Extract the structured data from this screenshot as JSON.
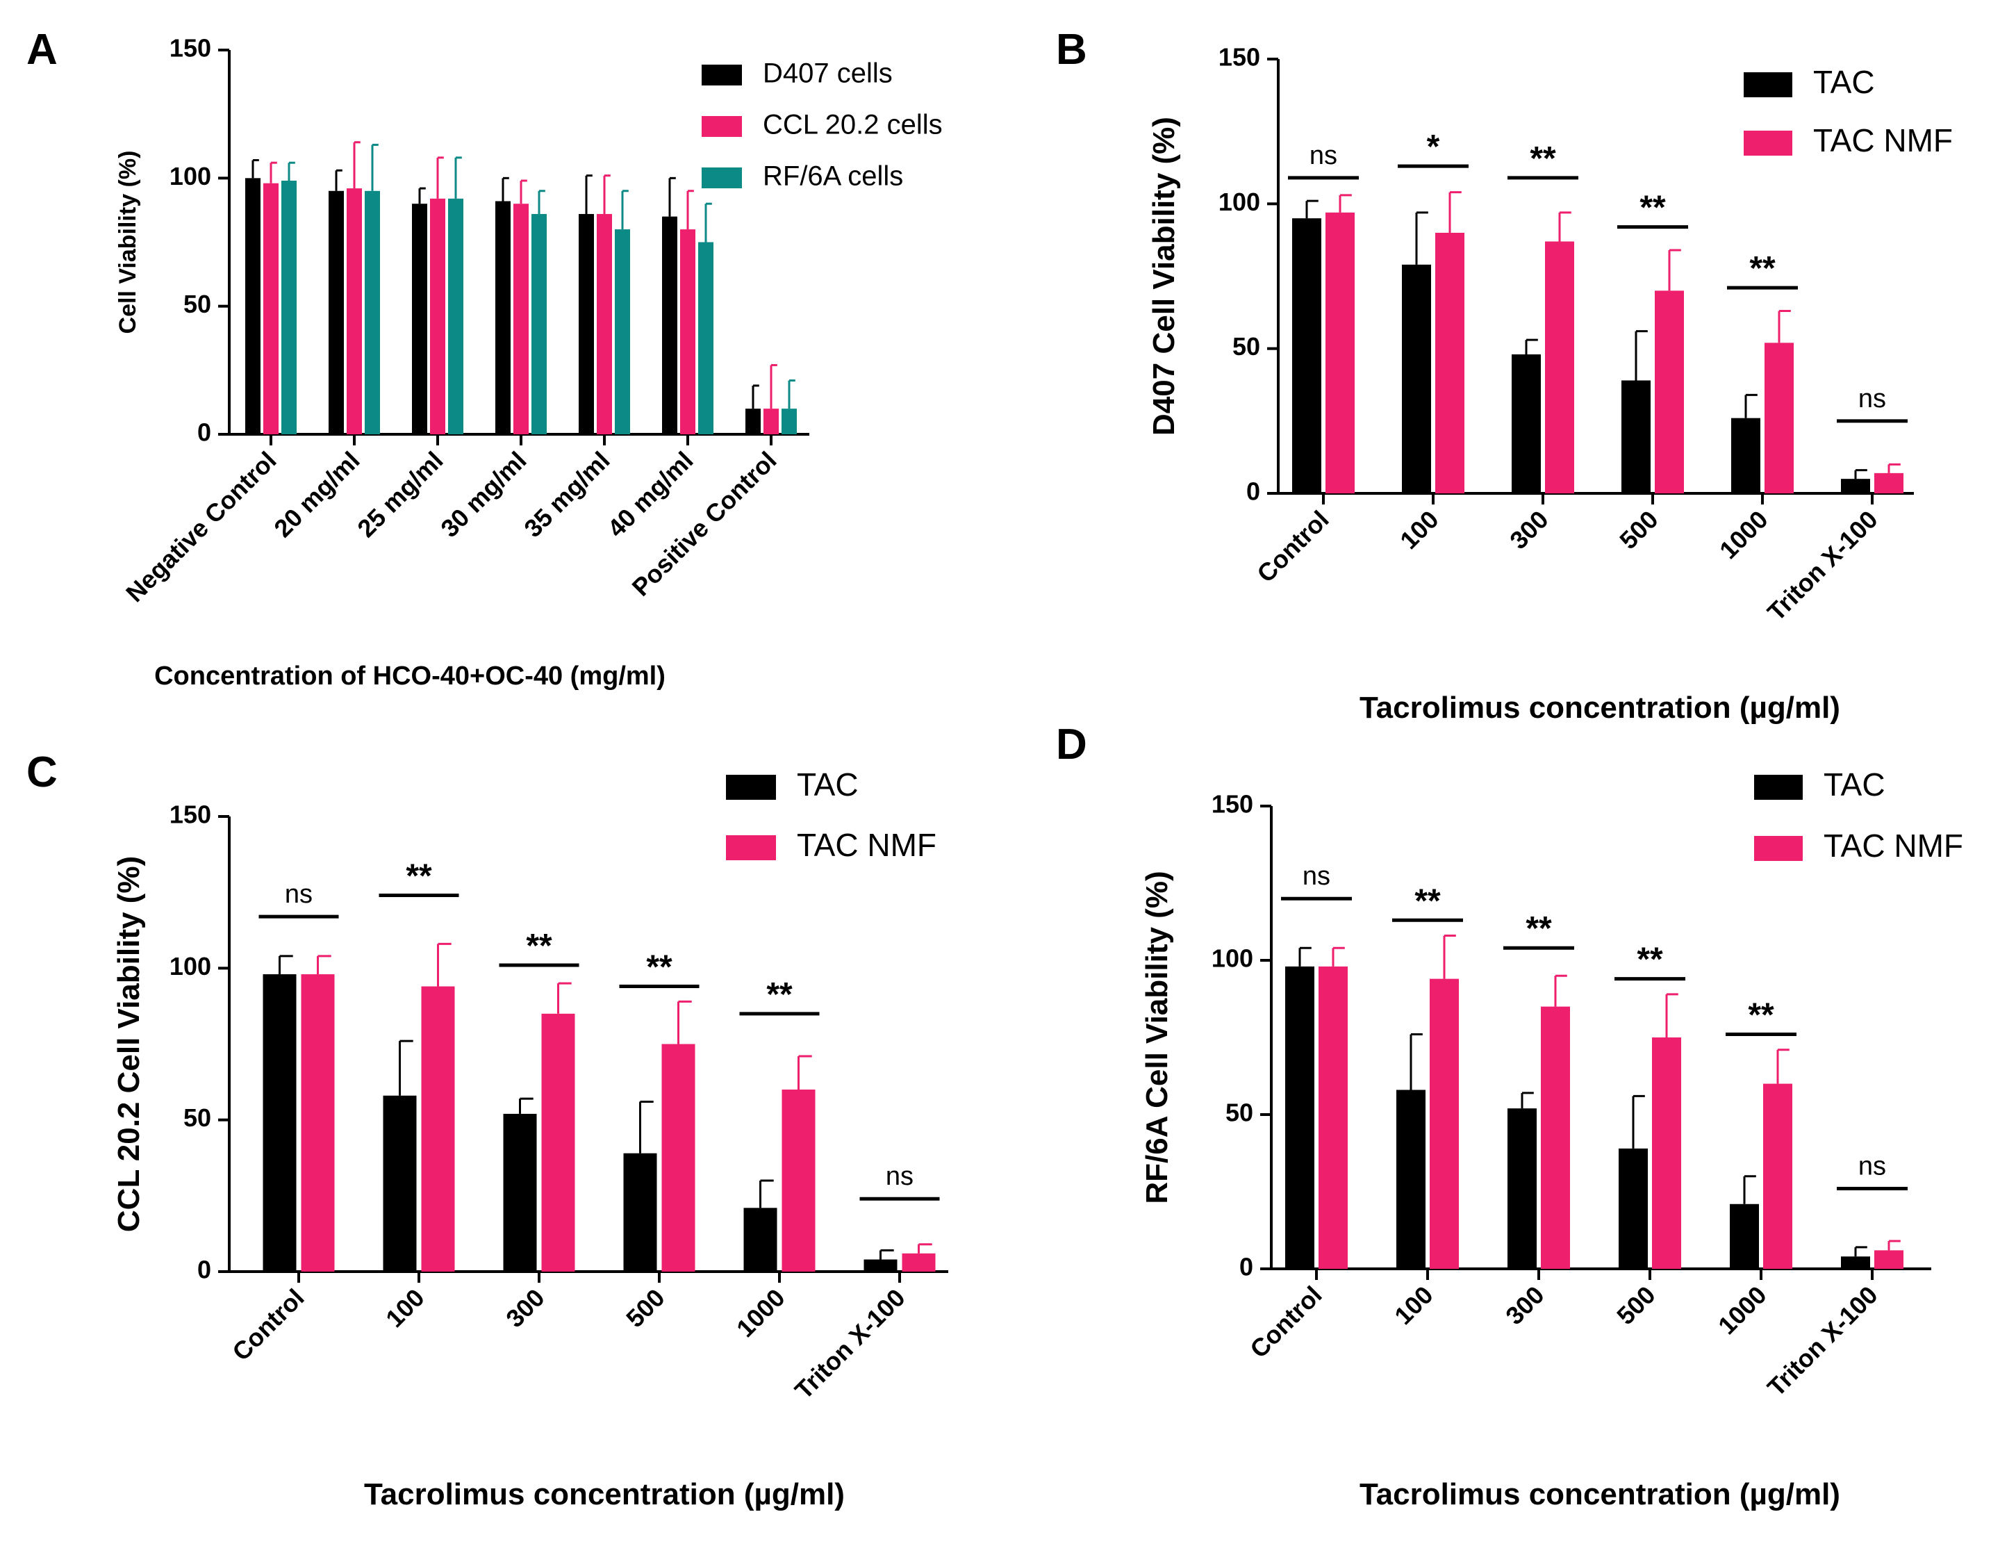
{
  "colors": {
    "black": "#000000",
    "pink": "#ee1f6c",
    "teal": "#0b8a86",
    "text": "#000000"
  },
  "chart_data": [
    {
      "panel": "A",
      "type": "bar",
      "categories": [
        "Negative Control",
        "20 mg/ml",
        "25 mg/ml",
        "30 mg/ml",
        "35 mg/ml",
        "40 mg/ml",
        "Positive Control"
      ],
      "series": [
        {
          "name": "D407 cells",
          "color": "black",
          "values": [
            100,
            95,
            90,
            91,
            86,
            85,
            10
          ],
          "errors": [
            7,
            8,
            6,
            9,
            15,
            15,
            9
          ]
        },
        {
          "name": "CCL 20.2 cells",
          "color": "pink",
          "values": [
            98,
            96,
            92,
            90,
            86,
            80,
            10
          ],
          "errors": [
            8,
            18,
            16,
            9,
            15,
            15,
            17
          ]
        },
        {
          "name": "RF/6A cells",
          "color": "teal",
          "values": [
            99,
            95,
            92,
            86,
            80,
            75,
            10
          ],
          "errors": [
            7,
            18,
            16,
            9,
            15,
            15,
            11
          ]
        }
      ],
      "ylim": [
        0,
        150
      ],
      "yticks": [
        0,
        50,
        100,
        150
      ],
      "xlabel": "Concentration of HCO-40+OC-40 (mg/ml)",
      "ylabel": "Cell Viability (%)",
      "legend": "top-right",
      "significance": []
    },
    {
      "panel": "B",
      "type": "bar",
      "categories": [
        "Control",
        "100",
        "300",
        "500",
        "1000",
        "Triton X-100"
      ],
      "series": [
        {
          "name": "TAC",
          "color": "black",
          "values": [
            95,
            79,
            48,
            39,
            26,
            5
          ],
          "errors": [
            6,
            18,
            5,
            17,
            8,
            3
          ]
        },
        {
          "name": "TAC NMF",
          "color": "pink",
          "values": [
            97,
            90,
            87,
            70,
            52,
            7
          ],
          "errors": [
            6,
            14,
            10,
            14,
            11,
            3
          ]
        }
      ],
      "ylim": [
        0,
        150
      ],
      "yticks": [
        0,
        50,
        100,
        150
      ],
      "xlabel": "Tacrolimus concentration (µg/ml)",
      "ylabel": "D407 Cell Viability (%)",
      "legend": "top-right",
      "significance": [
        {
          "label": "ns",
          "y": 109
        },
        {
          "label": "*",
          "y": 113
        },
        {
          "label": "**",
          "y": 109
        },
        {
          "label": "**",
          "y": 92
        },
        {
          "label": "**",
          "y": 71
        },
        {
          "label": "ns",
          "y": 25
        }
      ]
    },
    {
      "panel": "C",
      "type": "bar",
      "categories": [
        "Control",
        "100",
        "300",
        "500",
        "1000",
        "Triton X-100"
      ],
      "series": [
        {
          "name": "TAC",
          "color": "black",
          "values": [
            98,
            58,
            52,
            39,
            21,
            4
          ],
          "errors": [
            6,
            18,
            5,
            17,
            9,
            3
          ]
        },
        {
          "name": "TAC NMF",
          "color": "pink",
          "values": [
            98,
            94,
            85,
            75,
            60,
            6
          ],
          "errors": [
            6,
            14,
            10,
            14,
            11,
            3
          ]
        }
      ],
      "ylim": [
        0,
        150
      ],
      "yticks": [
        0,
        50,
        100,
        150
      ],
      "xlabel": "Tacrolimus concentration (µg/ml)",
      "ylabel": "CCL 20.2 Cell Viability (%)",
      "legend": "top-right",
      "significance": [
        {
          "label": "ns",
          "y": 117
        },
        {
          "label": "**",
          "y": 124
        },
        {
          "label": "**",
          "y": 101
        },
        {
          "label": "**",
          "y": 94
        },
        {
          "label": "**",
          "y": 85
        },
        {
          "label": "ns",
          "y": 24
        }
      ]
    },
    {
      "panel": "D",
      "type": "bar",
      "categories": [
        "Control",
        "100",
        "300",
        "500",
        "1000",
        "Triton X-100"
      ],
      "series": [
        {
          "name": "TAC",
          "color": "black",
          "values": [
            98,
            58,
            52,
            39,
            21,
            4
          ],
          "errors": [
            6,
            18,
            5,
            17,
            9,
            3
          ]
        },
        {
          "name": "TAC NMF",
          "color": "pink",
          "values": [
            98,
            94,
            85,
            75,
            60,
            6
          ],
          "errors": [
            6,
            14,
            10,
            14,
            11,
            3
          ]
        }
      ],
      "ylim": [
        0,
        150
      ],
      "yticks": [
        0,
        50,
        100,
        150
      ],
      "xlabel": "Tacrolimus concentration (µg/ml)",
      "ylabel": "RF/6A Cell Viability (%)",
      "legend": "top-right",
      "significance": [
        {
          "label": "ns",
          "y": 120
        },
        {
          "label": "**",
          "y": 113
        },
        {
          "label": "**",
          "y": 104
        },
        {
          "label": "**",
          "y": 94
        },
        {
          "label": "**",
          "y": 76
        },
        {
          "label": "ns",
          "y": 26
        }
      ]
    }
  ]
}
